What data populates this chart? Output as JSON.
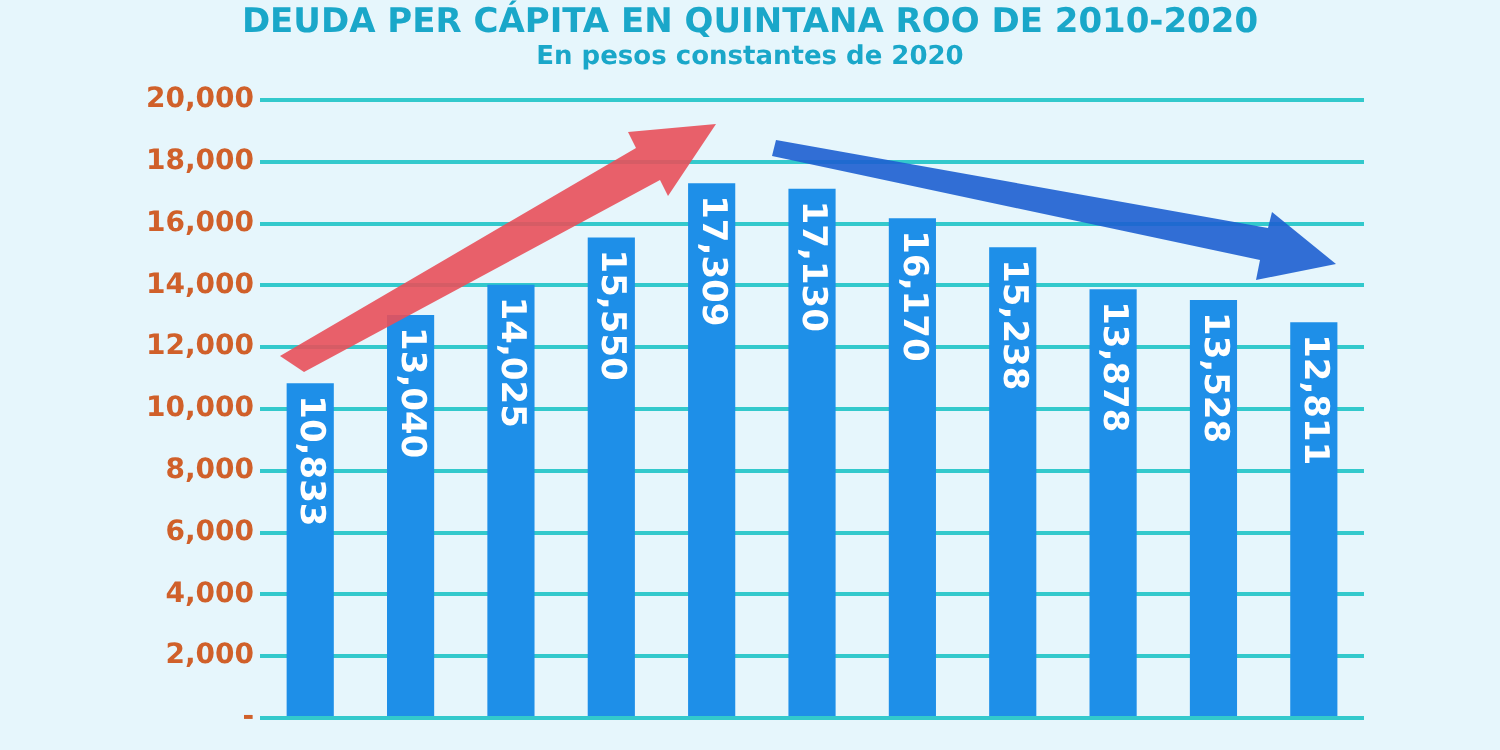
{
  "chart_data": {
    "type": "bar",
    "title": "DEUDA PER CÁPITA EN QUINTANA ROO DE 2010-2020",
    "subtitle": "En pesos constantes de 2020",
    "categories": [
      null,
      null,
      null,
      null,
      null,
      null,
      null,
      null,
      null,
      null,
      null
    ],
    "values": [
      10833,
      13040,
      14025,
      15550,
      17309,
      17130,
      16170,
      15238,
      13878,
      13528,
      12811
    ],
    "value_labels": [
      "10,833",
      "13,040",
      "14,025",
      "15,550",
      "17,309",
      "17,130",
      "16,170",
      "15,238",
      "13,878",
      "13,528",
      "12,811"
    ],
    "color": "#1e8fe8",
    "ylim": [
      0,
      20000
    ],
    "yticks": [
      {
        "value": 0,
        "label": "-"
      },
      {
        "value": 2000,
        "label": "2,000"
      },
      {
        "value": 4000,
        "label": "4,000"
      },
      {
        "value": 6000,
        "label": "6,000"
      },
      {
        "value": 8000,
        "label": "8,000"
      },
      {
        "value": 10000,
        "label": "10,000"
      },
      {
        "value": 12000,
        "label": "12,000"
      },
      {
        "value": 14000,
        "label": "14,000"
      },
      {
        "value": 16000,
        "label": "16,000"
      },
      {
        "value": 18000,
        "label": "18,000"
      },
      {
        "value": 20000,
        "label": "20,000"
      }
    ],
    "grid": "y",
    "legend": false
  }
}
